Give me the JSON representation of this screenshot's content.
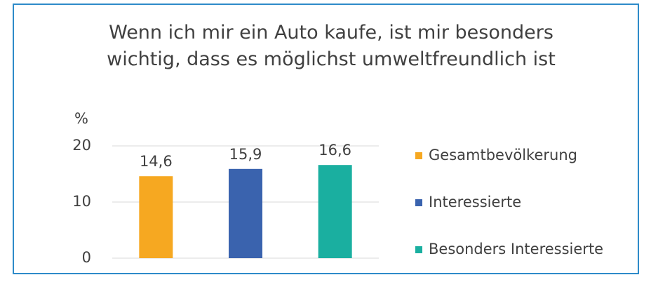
{
  "chart_data": {
    "type": "bar",
    "title": "Wenn ich mir ein Auto kaufe, ist mir besonders wichtig, dass es möglichst umweltfreundlich ist",
    "y_label": "%",
    "categories": [
      null
    ],
    "series": [
      {
        "name": "Gesamtbevölkerung",
        "color": "#f6a821",
        "values": [
          14.6
        ],
        "value_labels": [
          "14,6"
        ]
      },
      {
        "name": "Interessierte",
        "color": "#3a63ae",
        "values": [
          15.9
        ],
        "value_labels": [
          "15,9"
        ]
      },
      {
        "name": "Besonders Interessierte",
        "color": "#1aafa0",
        "values": [
          16.6
        ],
        "value_labels": [
          "16,6"
        ]
      }
    ],
    "ylim": [
      0,
      20
    ],
    "yticks": [
      0,
      10,
      20
    ],
    "grid": true,
    "legend": "right"
  }
}
